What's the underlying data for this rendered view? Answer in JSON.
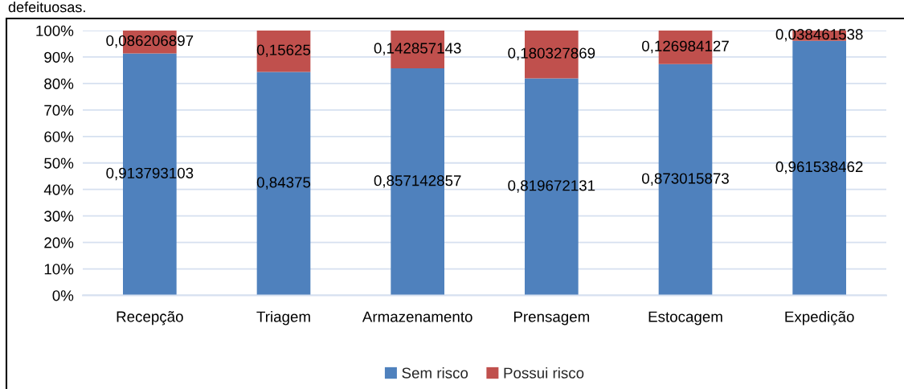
{
  "chart_data": {
    "type": "bar",
    "stacked": true,
    "categories": [
      "Recepção",
      "Triagem",
      "Armazenamento",
      "Prensagem",
      "Estocagem",
      "Expedição"
    ],
    "series": [
      {
        "name": "Sem risco",
        "color": "#4f81bd",
        "values": [
          0.913793103,
          0.84375,
          0.857142857,
          0.819672131,
          0.873015873,
          0.961538462
        ],
        "value_labels": [
          "0,913793103",
          "0,84375",
          "0,857142857",
          "0,819672131",
          "0,873015873",
          "0,961538462"
        ]
      },
      {
        "name": "Possui risco",
        "color": "#c0504d",
        "values": [
          0.086206897,
          0.15625,
          0.142857143,
          0.180327869,
          0.126984127,
          0.038461538
        ],
        "value_labels": [
          "0,086206897",
          "0,15625",
          "0,142857143",
          "0,180327869",
          "0,126984127",
          "0,038461538"
        ]
      }
    ],
    "ylim": [
      0,
      1
    ],
    "yticks": [
      {
        "value": 0,
        "label": "0%"
      },
      {
        "value": 0.1,
        "label": "10%"
      },
      {
        "value": 0.2,
        "label": "20%"
      },
      {
        "value": 0.3,
        "label": "30%"
      },
      {
        "value": 0.4,
        "label": "40%"
      },
      {
        "value": 0.5,
        "label": "50%"
      },
      {
        "value": 0.6,
        "label": "60%"
      },
      {
        "value": 0.7,
        "label": "70%"
      },
      {
        "value": 0.8,
        "label": "80%"
      },
      {
        "value": 0.9,
        "label": "90%"
      },
      {
        "value": 1,
        "label": "100%"
      }
    ],
    "grid": "y",
    "legend": "bottom",
    "annotations": [
      "defeituosas."
    ]
  }
}
